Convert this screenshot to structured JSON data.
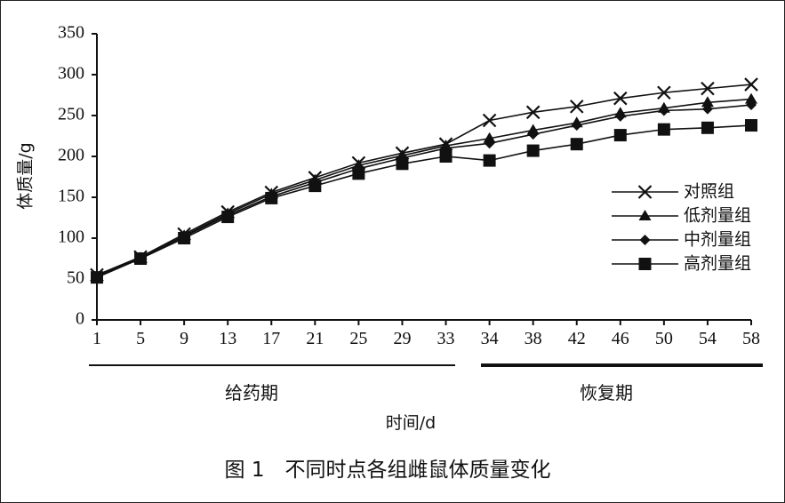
{
  "chart_data": {
    "type": "line",
    "caption": "图 1　不同时点各组雌鼠体质量变化",
    "xlabel": "时间/d",
    "ylabel": "体质量/g",
    "ylim": [
      0,
      350
    ],
    "yticks": [
      0,
      50,
      100,
      150,
      200,
      250,
      300,
      350
    ],
    "categories": [
      "1",
      "5",
      "9",
      "13",
      "17",
      "21",
      "25",
      "29",
      "33",
      "34",
      "38",
      "42",
      "46",
      "50",
      "54",
      "58"
    ],
    "phases": [
      {
        "label": "给药期",
        "from": "1",
        "to": "33"
      },
      {
        "label": "恢复期",
        "from": "34",
        "to": "58"
      }
    ],
    "legend_position": "right",
    "grid": false,
    "series": [
      {
        "name": "对照组",
        "marker": "x",
        "values": [
          55,
          77,
          105,
          132,
          156,
          174,
          192,
          204,
          215,
          244,
          254,
          261,
          271,
          278,
          283,
          288
        ]
      },
      {
        "name": "低剂量组",
        "marker": "triangle",
        "values": [
          54,
          76,
          103,
          130,
          154,
          171,
          189,
          201,
          213,
          222,
          232,
          241,
          253,
          259,
          266,
          270
        ]
      },
      {
        "name": "中剂量组",
        "marker": "diamond",
        "values": [
          53,
          76,
          102,
          128,
          151,
          168,
          185,
          198,
          210,
          216,
          227,
          238,
          249,
          256,
          258,
          263
        ]
      },
      {
        "name": "高剂量组",
        "marker": "square",
        "values": [
          52,
          75,
          100,
          126,
          149,
          164,
          179,
          191,
          200,
          195,
          207,
          215,
          226,
          233,
          235,
          238
        ]
      }
    ]
  }
}
